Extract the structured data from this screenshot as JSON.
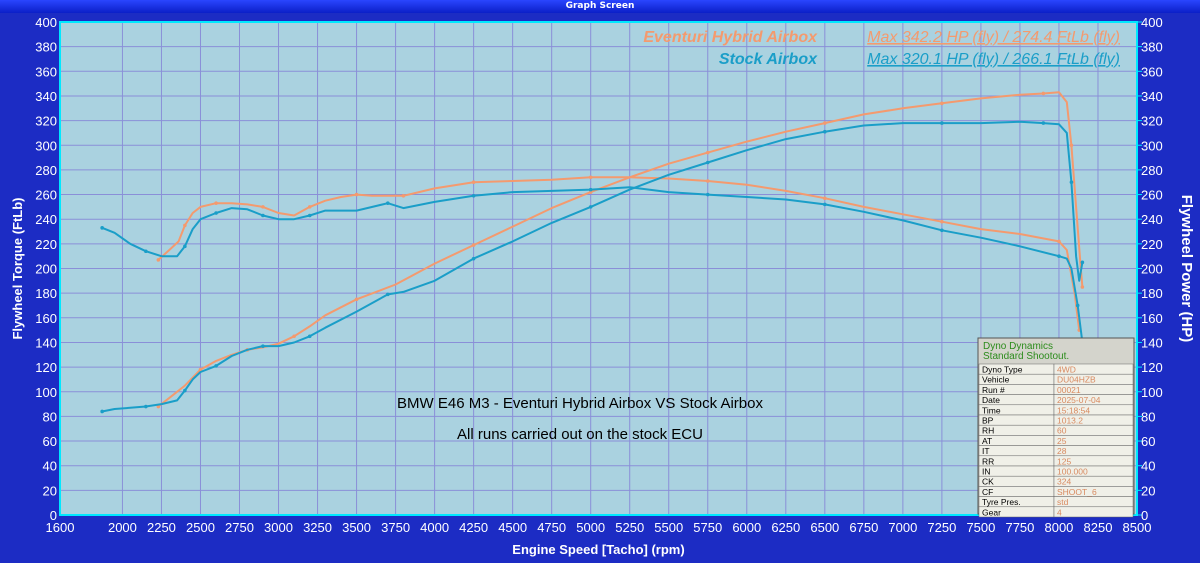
{
  "window": {
    "title": "Graph Screen"
  },
  "chart_data": {
    "type": "line",
    "xlabel": "Engine Speed [Tacho] (rpm)",
    "ylabel_left": "Flywheel Torque (FtLb)",
    "ylabel_right": "Flywheel Power (HP)",
    "xlim": [
      1600,
      8500
    ],
    "ylim": [
      0,
      400
    ],
    "x_ticks": [
      1600,
      2000,
      2250,
      2500,
      2750,
      3000,
      3250,
      3500,
      3750,
      4000,
      4250,
      4500,
      4750,
      5000,
      5250,
      5500,
      5750,
      6000,
      6250,
      6500,
      6750,
      7000,
      7250,
      7500,
      7750,
      8000,
      8250,
      8500
    ],
    "y_ticks": [
      0,
      20,
      40,
      60,
      80,
      100,
      120,
      140,
      160,
      180,
      200,
      220,
      240,
      260,
      280,
      300,
      320,
      340,
      360,
      380,
      400
    ],
    "grid": true,
    "legend": [
      {
        "name": "Eventuri Hybrid Airbox",
        "summary": "Max 342.2 HP (fly) / 274.4 FtLb (fly)",
        "color": "#f49a6e"
      },
      {
        "name": "Stock Airbox",
        "summary": "Max 320.1 HP (fly) / 266.1 FtLb (fly)",
        "color": "#1a9ec8"
      }
    ],
    "annotations": [
      "BMW E46 M3 - Eventuri Hybrid Airbox VS Stock Airbox",
      "All runs carried out on the stock ECU"
    ],
    "series": [
      {
        "name": "Eventuri Hybrid Airbox",
        "quantity": "Torque",
        "color": "#f49a6e",
        "x": [
          2230,
          2300,
          2360,
          2400,
          2450,
          2500,
          2600,
          2700,
          2800,
          2900,
          3000,
          3100,
          3200,
          3300,
          3400,
          3500,
          3600,
          3700,
          3800,
          3900,
          4000,
          4250,
          4500,
          4750,
          5000,
          5250,
          5500,
          5750,
          6000,
          6250,
          6500,
          6750,
          7000,
          7250,
          7500,
          7750,
          8000,
          8050,
          8100,
          8130
        ],
        "y": [
          207,
          215,
          222,
          235,
          245,
          250,
          253,
          253,
          252,
          250,
          245,
          243,
          250,
          255,
          258,
          260,
          259,
          259,
          259,
          262,
          265,
          270,
          271,
          272,
          274,
          274,
          273,
          271,
          268,
          263,
          257,
          250,
          244,
          238,
          232,
          228,
          222,
          215,
          180,
          150
        ]
      },
      {
        "name": "Eventuri Hybrid Airbox",
        "quantity": "Power",
        "color": "#f49a6e",
        "x": [
          2230,
          2300,
          2400,
          2500,
          2600,
          2700,
          2800,
          2900,
          3000,
          3100,
          3200,
          3300,
          3500,
          3750,
          4000,
          4250,
          4500,
          4750,
          5000,
          5250,
          5500,
          5750,
          6000,
          6250,
          6500,
          6750,
          7000,
          7250,
          7500,
          7750,
          7900,
          8000,
          8050,
          8080,
          8110,
          8140,
          8150
        ],
        "y": [
          88,
          95,
          105,
          118,
          125,
          130,
          134,
          136,
          139,
          145,
          153,
          162,
          175,
          187,
          204,
          219,
          234,
          249,
          262,
          274,
          285,
          294,
          303,
          311,
          318,
          325,
          330,
          334,
          338,
          341,
          342,
          343,
          335,
          300,
          250,
          200,
          185
        ]
      },
      {
        "name": "Stock Airbox",
        "quantity": "Torque",
        "color": "#1a9ec8",
        "x": [
          1870,
          1950,
          2050,
          2150,
          2250,
          2350,
          2400,
          2450,
          2500,
          2600,
          2700,
          2800,
          2900,
          3000,
          3100,
          3200,
          3300,
          3500,
          3700,
          3800,
          4000,
          4250,
          4500,
          4750,
          5000,
          5250,
          5500,
          5750,
          6000,
          6250,
          6500,
          6750,
          7000,
          7250,
          7500,
          7750,
          8000,
          8050,
          8080,
          8120,
          8150
        ],
        "y": [
          233,
          229,
          220,
          214,
          210,
          210,
          218,
          232,
          240,
          245,
          249,
          248,
          243,
          240,
          240,
          243,
          247,
          247,
          253,
          249,
          254,
          259,
          262,
          263,
          264,
          266,
          262,
          260,
          258,
          256,
          252,
          246,
          239,
          231,
          225,
          218,
          210,
          208,
          200,
          170,
          140
        ]
      },
      {
        "name": "Stock Airbox",
        "quantity": "Power",
        "color": "#1a9ec8",
        "x": [
          1870,
          1950,
          2050,
          2150,
          2250,
          2350,
          2400,
          2450,
          2500,
          2600,
          2700,
          2800,
          2900,
          3000,
          3100,
          3200,
          3300,
          3500,
          3700,
          3800,
          4000,
          4250,
          4500,
          4750,
          5000,
          5250,
          5500,
          5750,
          6000,
          6250,
          6500,
          6750,
          7000,
          7250,
          7500,
          7750,
          7900,
          8000,
          8050,
          8080,
          8110,
          8130,
          8150
        ],
        "y": [
          84,
          86,
          87,
          88,
          90,
          93,
          101,
          110,
          116,
          121,
          129,
          134,
          137,
          137,
          140,
          145,
          152,
          165,
          179,
          181,
          190,
          208,
          222,
          237,
          250,
          264,
          276,
          286,
          296,
          305,
          311,
          316,
          318,
          318,
          318,
          319,
          318,
          317,
          310,
          270,
          210,
          190,
          205
        ]
      }
    ]
  },
  "info_table": {
    "title_line1": "Dyno Dynamics",
    "title_line2": "Standard Shootout.",
    "rows": [
      {
        "label": "Dyno Type",
        "value": "4WD"
      },
      {
        "label": "Vehicle",
        "value": "DU04HZB"
      },
      {
        "label": "Run #",
        "value": "00021"
      },
      {
        "label": "Date",
        "value": "2025-07-04"
      },
      {
        "label": "Time",
        "value": "15:18:54"
      },
      {
        "label": "BP",
        "value": "1013.2"
      },
      {
        "label": "RH",
        "value": "60"
      },
      {
        "label": "AT",
        "value": "25"
      },
      {
        "label": "IT",
        "value": "28"
      },
      {
        "label": "RR",
        "value": "125"
      },
      {
        "label": "IN",
        "value": "100.000"
      },
      {
        "label": "CK",
        "value": "324"
      },
      {
        "label": "CF",
        "value": "SHOOT_6"
      },
      {
        "label": "Tyre Pres.",
        "value": "std"
      },
      {
        "label": "Gear",
        "value": "4"
      }
    ]
  }
}
